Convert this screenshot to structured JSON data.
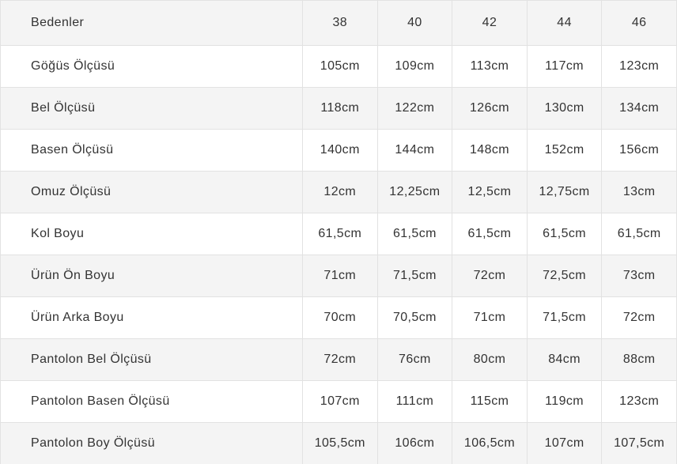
{
  "table": {
    "header": {
      "label": "Bedenler",
      "sizes": [
        "38",
        "40",
        "42",
        "44",
        "46"
      ]
    },
    "rows": [
      {
        "label": "Göğüs Ölçüsü",
        "values": [
          "105cm",
          "109cm",
          "113cm",
          "117cm",
          "123cm"
        ]
      },
      {
        "label": "Bel Ölçüsü",
        "values": [
          "118cm",
          "122cm",
          "126cm",
          "130cm",
          "134cm"
        ]
      },
      {
        "label": "Basen Ölçüsü",
        "values": [
          "140cm",
          "144cm",
          "148cm",
          "152cm",
          "156cm"
        ]
      },
      {
        "label": "Omuz Ölçüsü",
        "values": [
          "12cm",
          "12,25cm",
          "12,5cm",
          "12,75cm",
          "13cm"
        ]
      },
      {
        "label": "Kol Boyu",
        "values": [
          "61,5cm",
          "61,5cm",
          "61,5cm",
          "61,5cm",
          "61,5cm"
        ]
      },
      {
        "label": "Ürün Ön Boyu",
        "values": [
          "71cm",
          "71,5cm",
          "72cm",
          "72,5cm",
          "73cm"
        ]
      },
      {
        "label": "Ürün Arka Boyu",
        "values": [
          "70cm",
          "70,5cm",
          "71cm",
          "71,5cm",
          "72cm"
        ]
      },
      {
        "label": "Pantolon Bel Ölçüsü",
        "values": [
          "72cm",
          "76cm",
          "80cm",
          "84cm",
          "88cm"
        ]
      },
      {
        "label": "Pantolon Basen Ölçüsü",
        "values": [
          "107cm",
          "111cm",
          "115cm",
          "119cm",
          "123cm"
        ]
      },
      {
        "label": "Pantolon Boy Ölçüsü",
        "values": [
          "105,5cm",
          "106cm",
          "106,5cm",
          "107cm",
          "107,5cm"
        ]
      }
    ]
  },
  "colors": {
    "stripe": "#f4f4f4",
    "border": "#e2e2e2",
    "text": "#333333",
    "background": "#ffffff"
  }
}
